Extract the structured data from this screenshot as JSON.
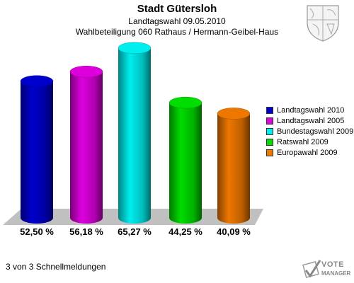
{
  "header": {
    "title": "Stadt Gütersloh",
    "subtitle": "Landtagswahl 09.05.2010",
    "subtitle2": "Wahlbeteiligung 060 Rathaus / Hermann-Geibel-Haus"
  },
  "footer": {
    "text": "3 von 3 Schnellmeldungen",
    "brand_top": "VOTE",
    "brand_bottom": "MANAGER"
  },
  "chart_data": {
    "type": "bar",
    "categories": [
      "Landtagswahl 2010",
      "Landtagswahl 2005",
      "Bundestagswahl 2009",
      "Ratswahl 2009",
      "Europawahl 2009"
    ],
    "values": [
      52.5,
      56.18,
      65.27,
      44.25,
      40.09
    ],
    "value_labels": [
      "52,50 %",
      "56,18 %",
      "65,27 %",
      "44,25 %",
      "40,09 %"
    ],
    "colors": [
      "#0000cc",
      "#dd00dd",
      "#00eeee",
      "#00dd00",
      "#ee7700"
    ],
    "title": "Stadt Gütersloh",
    "ylim": [
      0,
      70
    ],
    "grid": false,
    "legend_position": "right"
  }
}
